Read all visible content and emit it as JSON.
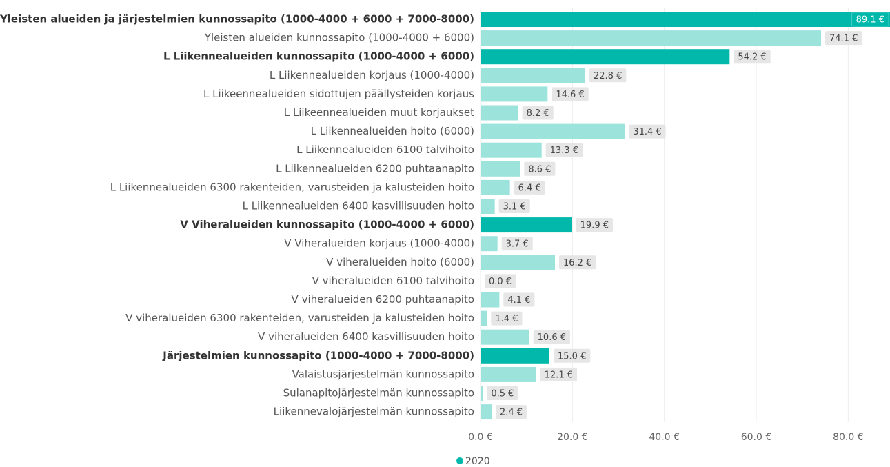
{
  "chart_data": {
    "type": "bar",
    "orientation": "horizontal",
    "categories": [
      "Yleisten alueiden ja järjestelmien kunnossapito (1000-4000 + 6000 + 7000-8000)",
      "Yleisten alueiden kunnossapito (1000-4000 + 6000)",
      "L Liikennealueiden kunnossapito (1000-4000 + 6000)",
      "L Liikennealueiden korjaus (1000-4000)",
      "L Liikeennealueiden sidottujen päällysteiden korjaus",
      "L Liikeennealueiden muut korjaukset",
      "L Liikennealueiden hoito (6000)",
      "L Liikennealueiden 6100 talvihoito",
      "L Liikennealueiden 6200 puhtaanapito",
      "L Liikennealueiden 6300 rakenteiden, varusteiden ja kalusteiden hoito",
      "L Liikennealueiden 6400 kasvillisuuden hoito",
      "V Viheralueiden kunnossapito (1000-4000 + 6000)",
      "V Viheralueiden korjaus (1000-4000)",
      "V viheralueiden hoito (6000)",
      "V viheralueiden 6100 talvihoito",
      "V viheralueiden 6200 puhtaanapito",
      "V viheralueiden 6300 rakenteiden, varusteiden ja kalusteiden hoito",
      "V viheralueiden 6400 kasvillisuuden hoito",
      "Järjestelmien kunnossapito (1000-4000 + 7000-8000)",
      "Valaistusjärjestelmän kunnossapito",
      "Sulanapitojärjestelmän kunnossapito",
      "Liikennevalojärjestelmän kunnossapito"
    ],
    "series": [
      {
        "name": "2020",
        "color": "#01b8aa",
        "values": [
          89.1,
          74.1,
          54.2,
          22.8,
          14.6,
          8.2,
          31.4,
          13.3,
          8.6,
          6.4,
          3.1,
          19.9,
          3.7,
          16.2,
          0.0,
          4.1,
          1.4,
          10.6,
          15.0,
          12.1,
          0.5,
          2.4
        ],
        "value_labels": [
          "89.1 €",
          "74.1 €",
          "54.2 €",
          "22.8 €",
          "14.6 €",
          "8.2 €",
          "31.4 €",
          "13.3 €",
          "8.6 €",
          "6.4 €",
          "3.1 €",
          "19.9 €",
          "3.7 €",
          "16.2 €",
          "0.0 €",
          "4.1 €",
          "1.4 €",
          "10.6 €",
          "15.0 €",
          "12.1 €",
          "0.5 €",
          "2.4 €"
        ]
      }
    ],
    "bar_colors": [
      "#01b8aa",
      "#9ce3dc",
      "#01b8aa",
      "#9ce3dc",
      "#9ce3dc",
      "#9ce3dc",
      "#9ce3dc",
      "#9ce3dc",
      "#9ce3dc",
      "#9ce3dc",
      "#9ce3dc",
      "#01b8aa",
      "#9ce3dc",
      "#9ce3dc",
      "#9ce3dc",
      "#9ce3dc",
      "#9ce3dc",
      "#9ce3dc",
      "#01b8aa",
      "#9ce3dc",
      "#9ce3dc",
      "#9ce3dc"
    ],
    "bold": [
      true,
      false,
      true,
      false,
      false,
      false,
      false,
      false,
      false,
      false,
      false,
      true,
      false,
      false,
      false,
      false,
      false,
      false,
      true,
      false,
      false,
      false
    ],
    "xlim": [
      0,
      89.1
    ],
    "xticks": [
      {
        "value": 0,
        "label": "0.0 €"
      },
      {
        "value": 20,
        "label": "20.0 €"
      },
      {
        "value": 40,
        "label": "40.0 €"
      },
      {
        "value": 60,
        "label": "60.0 €"
      },
      {
        "value": 80,
        "label": "80.0 €"
      }
    ],
    "grid": true,
    "legend": "bottom"
  }
}
